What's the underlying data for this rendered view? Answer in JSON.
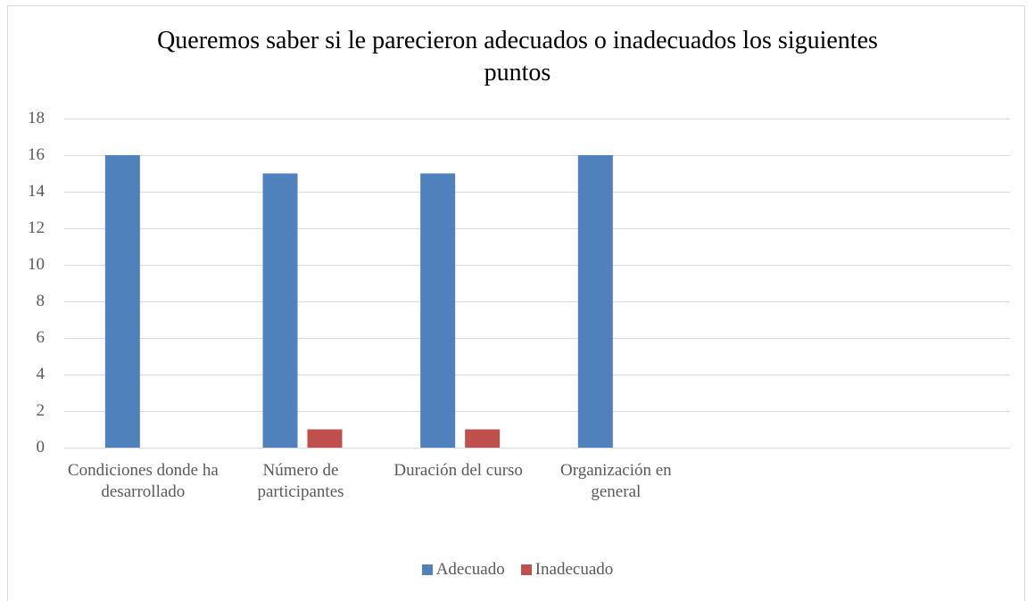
{
  "chart_data": {
    "type": "bar",
    "title": "Queremos saber si le parecieron adecuados o inadecuados los siguientes puntos",
    "categories": [
      "Condiciones donde ha desarrollado",
      "Número de participantes",
      "Duración del curso",
      "Organización en general",
      null,
      null
    ],
    "series": [
      {
        "name": "Adecuado",
        "color": "#4f81bd",
        "values": [
          16,
          15,
          15,
          16,
          null,
          null
        ]
      },
      {
        "name": "Inadecuado",
        "color": "#c0504d",
        "values": [
          0,
          1,
          1,
          0,
          null,
          null
        ]
      }
    ],
    "ylim": [
      0,
      18
    ],
    "yticks": [
      0,
      2,
      4,
      6,
      8,
      10,
      12,
      14,
      16,
      18
    ],
    "grid": true,
    "legend": "bottom"
  }
}
